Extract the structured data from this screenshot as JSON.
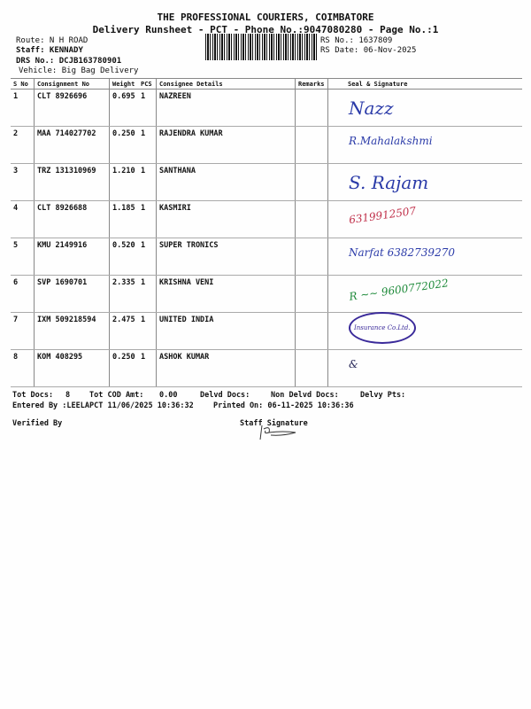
{
  "header": {
    "company": "THE PROFESSIONAL COURIERS, COIMBATORE",
    "subtitle": "Delivery Runsheet - PCT - Phone No.:9047080280 - Page No.:1",
    "route": "Route: N H ROAD",
    "staff": "Staff: KENNADY",
    "drs": "DRS No.: DCJB163780901",
    "vehicle": "Vehicle: Big Bag Delivery",
    "rs_no": "RS No.: 1637809",
    "rs_date": "RS Date: 06-Nov-2025"
  },
  "table": {
    "columns": [
      "S No",
      "Consignment No",
      "Weight",
      "PCS",
      "Consignee Details",
      "Remarks",
      "Seal & Signature"
    ],
    "rows": [
      {
        "sno": "1",
        "cn": "CLT 8926696",
        "weight": "0.695",
        "pcs": "1",
        "consignee": "NAZREEN",
        "sig": "Nazz",
        "sig_color": "#2a3aa8"
      },
      {
        "sno": "2",
        "cn": "MAA 714027702",
        "weight": "0.250",
        "pcs": "1",
        "consignee": "RAJENDRA KUMAR",
        "sig": "R.Mahalakshmi",
        "sig_color": "#2a3aa8"
      },
      {
        "sno": "3",
        "cn": "TRZ 131310969",
        "weight": "1.210",
        "pcs": "1",
        "consignee": "SANTHANA",
        "sig": "S. Rajam",
        "sig_color": "#2a3aa8"
      },
      {
        "sno": "4",
        "cn": "CLT 8926688",
        "weight": "1.185",
        "pcs": "1",
        "consignee": "KASMIRI",
        "sig": "6319912507",
        "sig_color": "#c0304a"
      },
      {
        "sno": "5",
        "cn": "KMU 2149916",
        "weight": "0.520",
        "pcs": "1",
        "consignee": "SUPER TRONICS",
        "sig": "Narfat 6382739270",
        "sig_color": "#2a3aa8"
      },
      {
        "sno": "6",
        "cn": "SVP 1690701",
        "weight": "2.335",
        "pcs": "1",
        "consignee": "KRISHNA VENI",
        "sig": "R ~~ 9600772022",
        "sig_color": "#1e8a3a"
      },
      {
        "sno": "7",
        "cn": "IXM 509218594",
        "weight": "2.475",
        "pcs": "1",
        "consignee": "UNITED INDIA",
        "sig": "Insurance Co.Ltd.",
        "sig_color": "#3a2a9a"
      },
      {
        "sno": "8",
        "cn": "KOM 408295",
        "weight": "0.250",
        "pcs": "1",
        "consignee": "ASHOK KUMAR",
        "sig": "&",
        "sig_color": "#2a2a5a"
      }
    ]
  },
  "footer": {
    "tot_docs_label": "Tot Docs:",
    "tot_docs": "8",
    "cod_label": "Tot COD Amt:",
    "cod": "0.00",
    "delvd": "Delvd Docs:",
    "non_delvd": "Non Delvd Docs:",
    "delvy_pts": "Delvy Pts:",
    "entered": "Entered By :LEELAPCT 11/06/2025 10:36:32",
    "printed": "Printed On: 06-11-2025 10:36:36",
    "verified": "Verified By",
    "staff_sig": "Staff Signature"
  }
}
